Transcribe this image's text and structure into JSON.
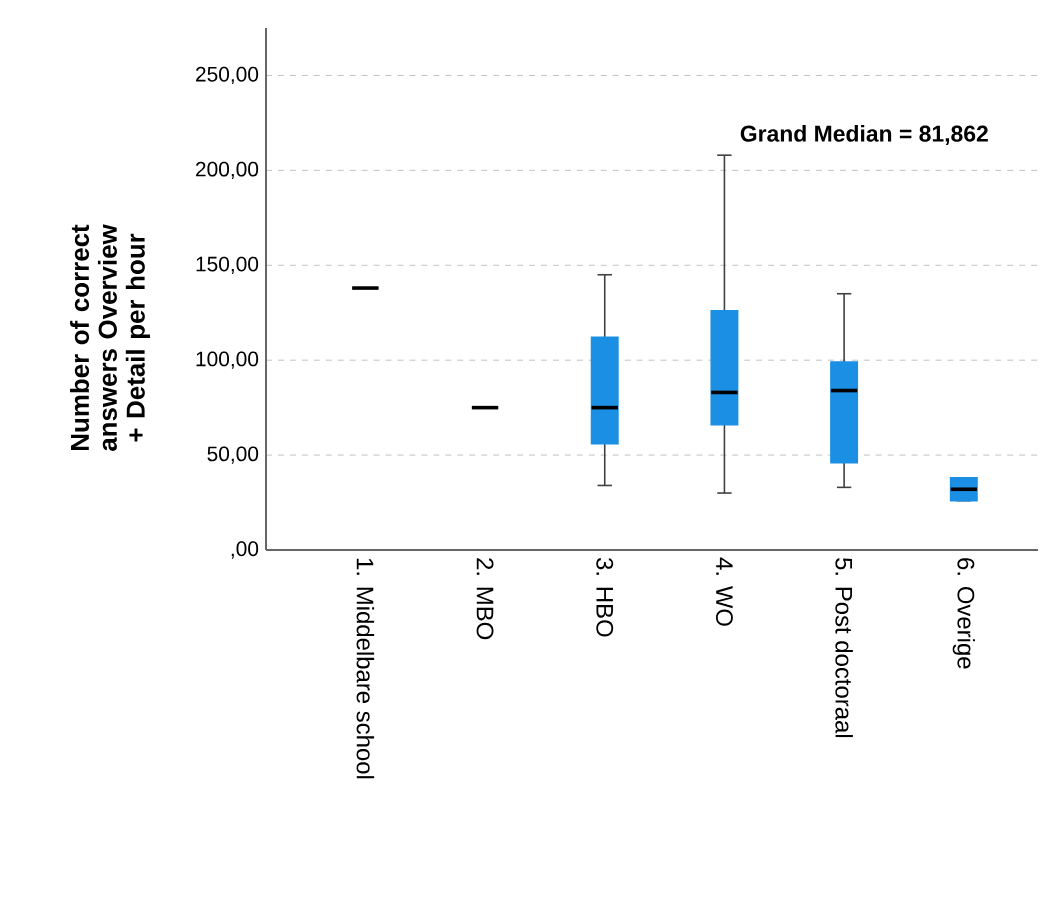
{
  "chart_data": {
    "type": "box",
    "ylabel": "Number of correct answers Overview + Detail per hour",
    "categories": [
      "1. Middelbare school",
      "2. MBO",
      "3. HBO",
      "4. WO",
      "5. Post doctoraal",
      "6. Overige"
    ],
    "series": [
      {
        "color": "#1a8fe3",
        "boxes": [
          {
            "low": 138,
            "q1": 138,
            "median": 138,
            "q3": 138,
            "high": 138
          },
          {
            "low": 75,
            "q1": 75,
            "median": 75,
            "q3": 75,
            "high": 75
          },
          {
            "low": 34,
            "q1": 56,
            "median": 75,
            "q3": 112,
            "high": 145
          },
          {
            "low": 30,
            "q1": 66,
            "median": 83,
            "q3": 126,
            "high": 208
          },
          {
            "low": 33,
            "q1": 46,
            "median": 84,
            "q3": 99,
            "high": 135
          },
          {
            "low": 26,
            "q1": 26,
            "median": 32,
            "q3": 38,
            "high": 38
          }
        ]
      }
    ],
    "ylim": [
      0,
      275
    ],
    "yticks": [
      {
        "value": 0,
        "label": ",00"
      },
      {
        "value": 50,
        "label": "50,00"
      },
      {
        "value": 100,
        "label": "100,00"
      },
      {
        "value": 150,
        "label": "150,00"
      },
      {
        "value": 200,
        "label": "200,00"
      },
      {
        "value": 250,
        "label": "250,00"
      }
    ],
    "grid": "y",
    "annotations": [
      "Grand Median = 81,862"
    ]
  }
}
